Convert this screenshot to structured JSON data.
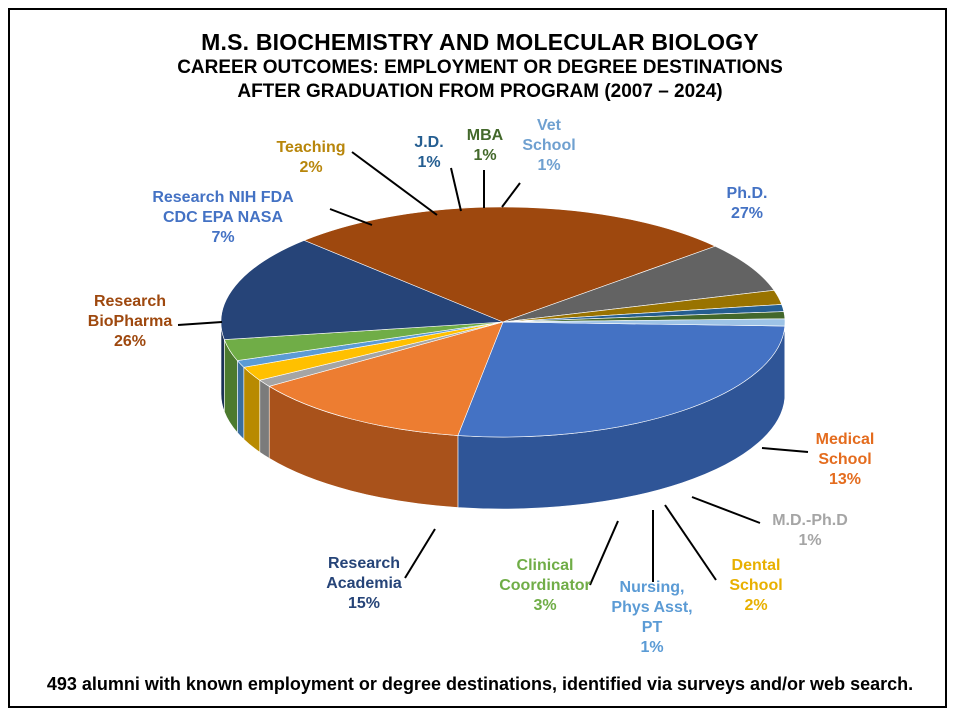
{
  "titles": {
    "line1": "M.S. BIOCHEMISTRY AND MOLECULAR BIOLOGY",
    "line2": "CAREER OUTCOMES: EMPLOYMENT OR DEGREE DESTINATIONS",
    "line3": "AFTER GRADUATION FROM PROGRAM (2007 – 2024)"
  },
  "footnote": "493 alumni with known employment or degree destinations, identified via surveys and/or web search.",
  "chart_data": {
    "type": "pie",
    "title": "M.S. BIOCHEMISTRY AND MOLECULAR BIOLOGY",
    "subtitle": "CAREER OUTCOMES: EMPLOYMENT OR DEGREE DESTINATIONS AFTER GRADUATION FROM PROGRAM (2007 – 2024)",
    "style": "3d-pie",
    "unit": "%",
    "slices": [
      {
        "label": [
          "Ph.D."
        ],
        "value": 27,
        "value_label": "27%",
        "color": "#4472C4",
        "side": "#2F5597",
        "label_color": "#4472C4"
      },
      {
        "label": [
          "Medical",
          "School"
        ],
        "value": 13,
        "value_label": "13%",
        "color": "#ED7D31",
        "side": "#A9521B",
        "label_color": "#E46C1E"
      },
      {
        "label": [
          "M.D.-Ph.D"
        ],
        "value": 1,
        "value_label": "1%",
        "color": "#A5A5A5",
        "side": "#7B7B7B",
        "label_color": "#A5A5A5"
      },
      {
        "label": [
          "Dental",
          "School"
        ],
        "value": 2,
        "value_label": "2%",
        "color": "#FFC000",
        "side": "#B88A00",
        "label_color": "#E8B000"
      },
      {
        "label": [
          "Nursing,",
          "Phys Asst,",
          "PT"
        ],
        "value": 1,
        "value_label": "1%",
        "color": "#5B9BD5",
        "side": "#3A6E9E",
        "label_color": "#5B9BD5"
      },
      {
        "label": [
          "Clinical",
          "Coordinator"
        ],
        "value": 3,
        "value_label": "3%",
        "color": "#70AD47",
        "side": "#4C7A2E",
        "label_color": "#70AD47"
      },
      {
        "label": [
          "Research",
          "Academia"
        ],
        "value": 15,
        "value_label": "15%",
        "color": "#264478",
        "side": "#1B3156",
        "label_color": "#264478"
      },
      {
        "label": [
          "Research",
          "BioPharma"
        ],
        "value": 26,
        "value_label": "26%",
        "color": "#9E480E",
        "side": "#7A3508",
        "label_color": "#9E480E"
      },
      {
        "label": [
          "Research NIH FDA",
          "CDC EPA NASA"
        ],
        "value": 7,
        "value_label": "7%",
        "color": "#636363",
        "side": "#444444",
        "label_color": "#4472C4"
      },
      {
        "label": [
          "Teaching"
        ],
        "value": 2,
        "value_label": "2%",
        "color": "#997300",
        "side": "#6E5300",
        "label_color": "#B8860B"
      },
      {
        "label": [
          "J.D."
        ],
        "value": 1,
        "value_label": "1%",
        "color": "#255E91",
        "side": "#1A4468",
        "label_color": "#255E91"
      },
      {
        "label": [
          "MBA"
        ],
        "value": 1,
        "value_label": "1%",
        "color": "#43682B",
        "side": "#2F4A1E",
        "label_color": "#43682B"
      },
      {
        "label": [
          "Vet",
          "School"
        ],
        "value": 1,
        "value_label": "1%",
        "color": "#9DC3E6",
        "side": "#7096BA",
        "label_color": "#6FA0D0"
      }
    ]
  }
}
